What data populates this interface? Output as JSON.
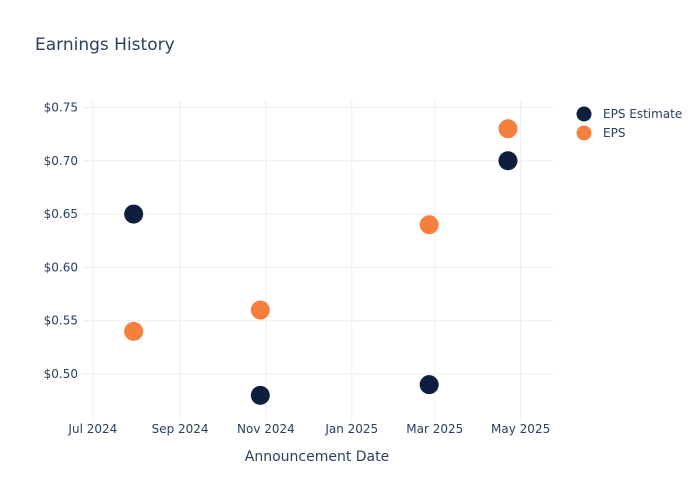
{
  "chart_data": {
    "type": "scatter",
    "title": "Earnings History",
    "xlabel": "Announcement Date",
    "ylabel": "",
    "x_axis_type": "date",
    "xlim": [
      "2024-06-24",
      "2025-05-24"
    ],
    "ylim": [
      0.455,
      0.757
    ],
    "x_ticks": [
      {
        "date": "2024-07-01",
        "label": "Jul 2024"
      },
      {
        "date": "2024-09-01",
        "label": "Sep 2024"
      },
      {
        "date": "2024-11-01",
        "label": "Nov 2024"
      },
      {
        "date": "2025-01-01",
        "label": "Jan 2025"
      },
      {
        "date": "2025-03-01",
        "label": "Mar 2025"
      },
      {
        "date": "2025-05-01",
        "label": "May 2025"
      }
    ],
    "y_ticks": [
      {
        "value": 0.5,
        "label": "$0.50"
      },
      {
        "value": 0.55,
        "label": "$0.55"
      },
      {
        "value": 0.6,
        "label": "$0.60"
      },
      {
        "value": 0.65,
        "label": "$0.65"
      },
      {
        "value": 0.7,
        "label": "$0.70"
      },
      {
        "value": 0.75,
        "label": "$0.75"
      }
    ],
    "grid": true,
    "legend_position": "top-right",
    "series": [
      {
        "name": "EPS Estimate",
        "color": "#0e1e3e",
        "points": [
          {
            "x": "2024-07-30",
            "y": 0.65
          },
          {
            "x": "2024-10-28",
            "y": 0.48
          },
          {
            "x": "2025-02-25",
            "y": 0.49
          },
          {
            "x": "2025-04-22",
            "y": 0.7
          }
        ]
      },
      {
        "name": "EPS",
        "color": "#f5803e",
        "points": [
          {
            "x": "2024-07-30",
            "y": 0.54
          },
          {
            "x": "2024-10-28",
            "y": 0.56
          },
          {
            "x": "2025-02-25",
            "y": 0.64
          },
          {
            "x": "2025-04-22",
            "y": 0.73
          }
        ]
      }
    ]
  }
}
